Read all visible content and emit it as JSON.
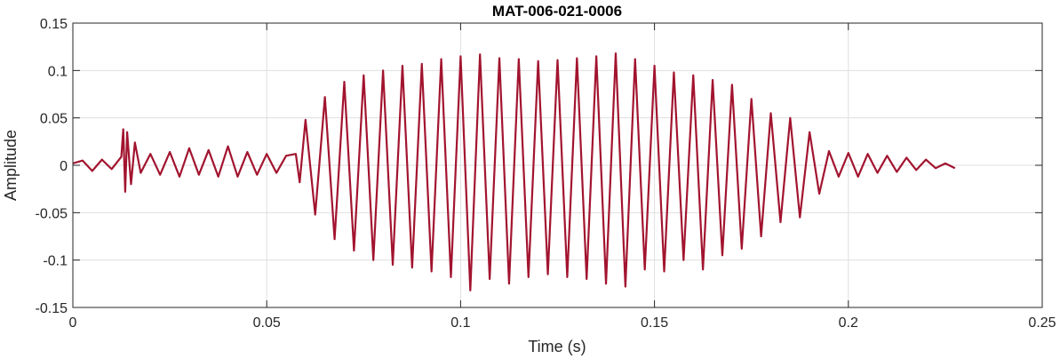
{
  "chart_data": {
    "type": "line",
    "title": "MAT-006-021-0006",
    "xlabel": "Time (s)",
    "ylabel": "Amplitude",
    "xlim": [
      0,
      0.25
    ],
    "ylim": [
      -0.15,
      0.15
    ],
    "xticks": [
      0,
      0.05,
      0.1,
      0.15,
      0.2,
      0.25
    ],
    "xtick_labels": [
      "0",
      "0.05",
      "0.1",
      "0.15",
      "0.2",
      "0.25"
    ],
    "yticks": [
      -0.15,
      -0.1,
      -0.05,
      0,
      0.05,
      0.1,
      0.15
    ],
    "ytick_labels": [
      "-0.15",
      "-0.1",
      "-0.05",
      "0",
      "0.05",
      "0.1",
      "0.15"
    ],
    "grid": true,
    "box": true,
    "colors": {
      "line": "#A2142F",
      "grid": "#DFDFDF",
      "axis": "#262626"
    },
    "series": [
      {
        "x": [
          0,
          0.0025,
          0.005,
          0.0075,
          0.01,
          0.0125,
          0.013,
          0.0135,
          0.014,
          0.015,
          0.016,
          0.0175,
          0.02,
          0.0225,
          0.025,
          0.0275,
          0.03,
          0.0325,
          0.035,
          0.0375,
          0.04,
          0.0425,
          0.045,
          0.0475,
          0.05,
          0.0525,
          0.055,
          0.0575,
          0.0585,
          0.06,
          0.0625,
          0.065,
          0.0675,
          0.07,
          0.0725,
          0.075,
          0.0775,
          0.08,
          0.0825,
          0.085,
          0.0875,
          0.09,
          0.0925,
          0.095,
          0.0975,
          0.1,
          0.1025,
          0.105,
          0.1075,
          0.11,
          0.1125,
          0.115,
          0.1175,
          0.12,
          0.1225,
          0.125,
          0.1275,
          0.13,
          0.1325,
          0.135,
          0.1375,
          0.14,
          0.1425,
          0.145,
          0.1475,
          0.15,
          0.1525,
          0.155,
          0.1575,
          0.16,
          0.1625,
          0.165,
          0.1675,
          0.17,
          0.1725,
          0.175,
          0.1775,
          0.18,
          0.1825,
          0.185,
          0.1875,
          0.19,
          0.1925,
          0.195,
          0.1975,
          0.2,
          0.2025,
          0.205,
          0.2075,
          0.21,
          0.2125,
          0.215,
          0.2175,
          0.22,
          0.2225,
          0.225,
          0.2275
        ],
        "y": [
          0.002,
          0.005,
          -0.006,
          0.006,
          -0.004,
          0.009,
          0.038,
          -0.028,
          0.035,
          -0.02,
          0.024,
          -0.008,
          0.012,
          -0.01,
          0.014,
          -0.012,
          0.018,
          -0.01,
          0.016,
          -0.012,
          0.02,
          -0.012,
          0.014,
          -0.01,
          0.012,
          -0.008,
          0.01,
          0.012,
          -0.018,
          0.048,
          -0.052,
          0.072,
          -0.078,
          0.088,
          -0.09,
          0.095,
          -0.1,
          0.1,
          -0.105,
          0.105,
          -0.108,
          0.107,
          -0.112,
          0.112,
          -0.118,
          0.115,
          -0.132,
          0.117,
          -0.12,
          0.113,
          -0.125,
          0.112,
          -0.118,
          0.11,
          -0.115,
          0.111,
          -0.118,
          0.113,
          -0.12,
          0.115,
          -0.125,
          0.118,
          -0.128,
          0.112,
          -0.11,
          0.105,
          -0.112,
          0.098,
          -0.1,
          0.095,
          -0.11,
          0.09,
          -0.095,
          0.085,
          -0.088,
          0.07,
          -0.075,
          0.055,
          -0.06,
          0.05,
          -0.055,
          0.035,
          -0.03,
          0.015,
          -0.012,
          0.013,
          -0.012,
          0.012,
          -0.008,
          0.01,
          -0.007,
          0.008,
          -0.005,
          0.006,
          -0.003,
          0.002,
          -0.003
        ]
      }
    ]
  }
}
